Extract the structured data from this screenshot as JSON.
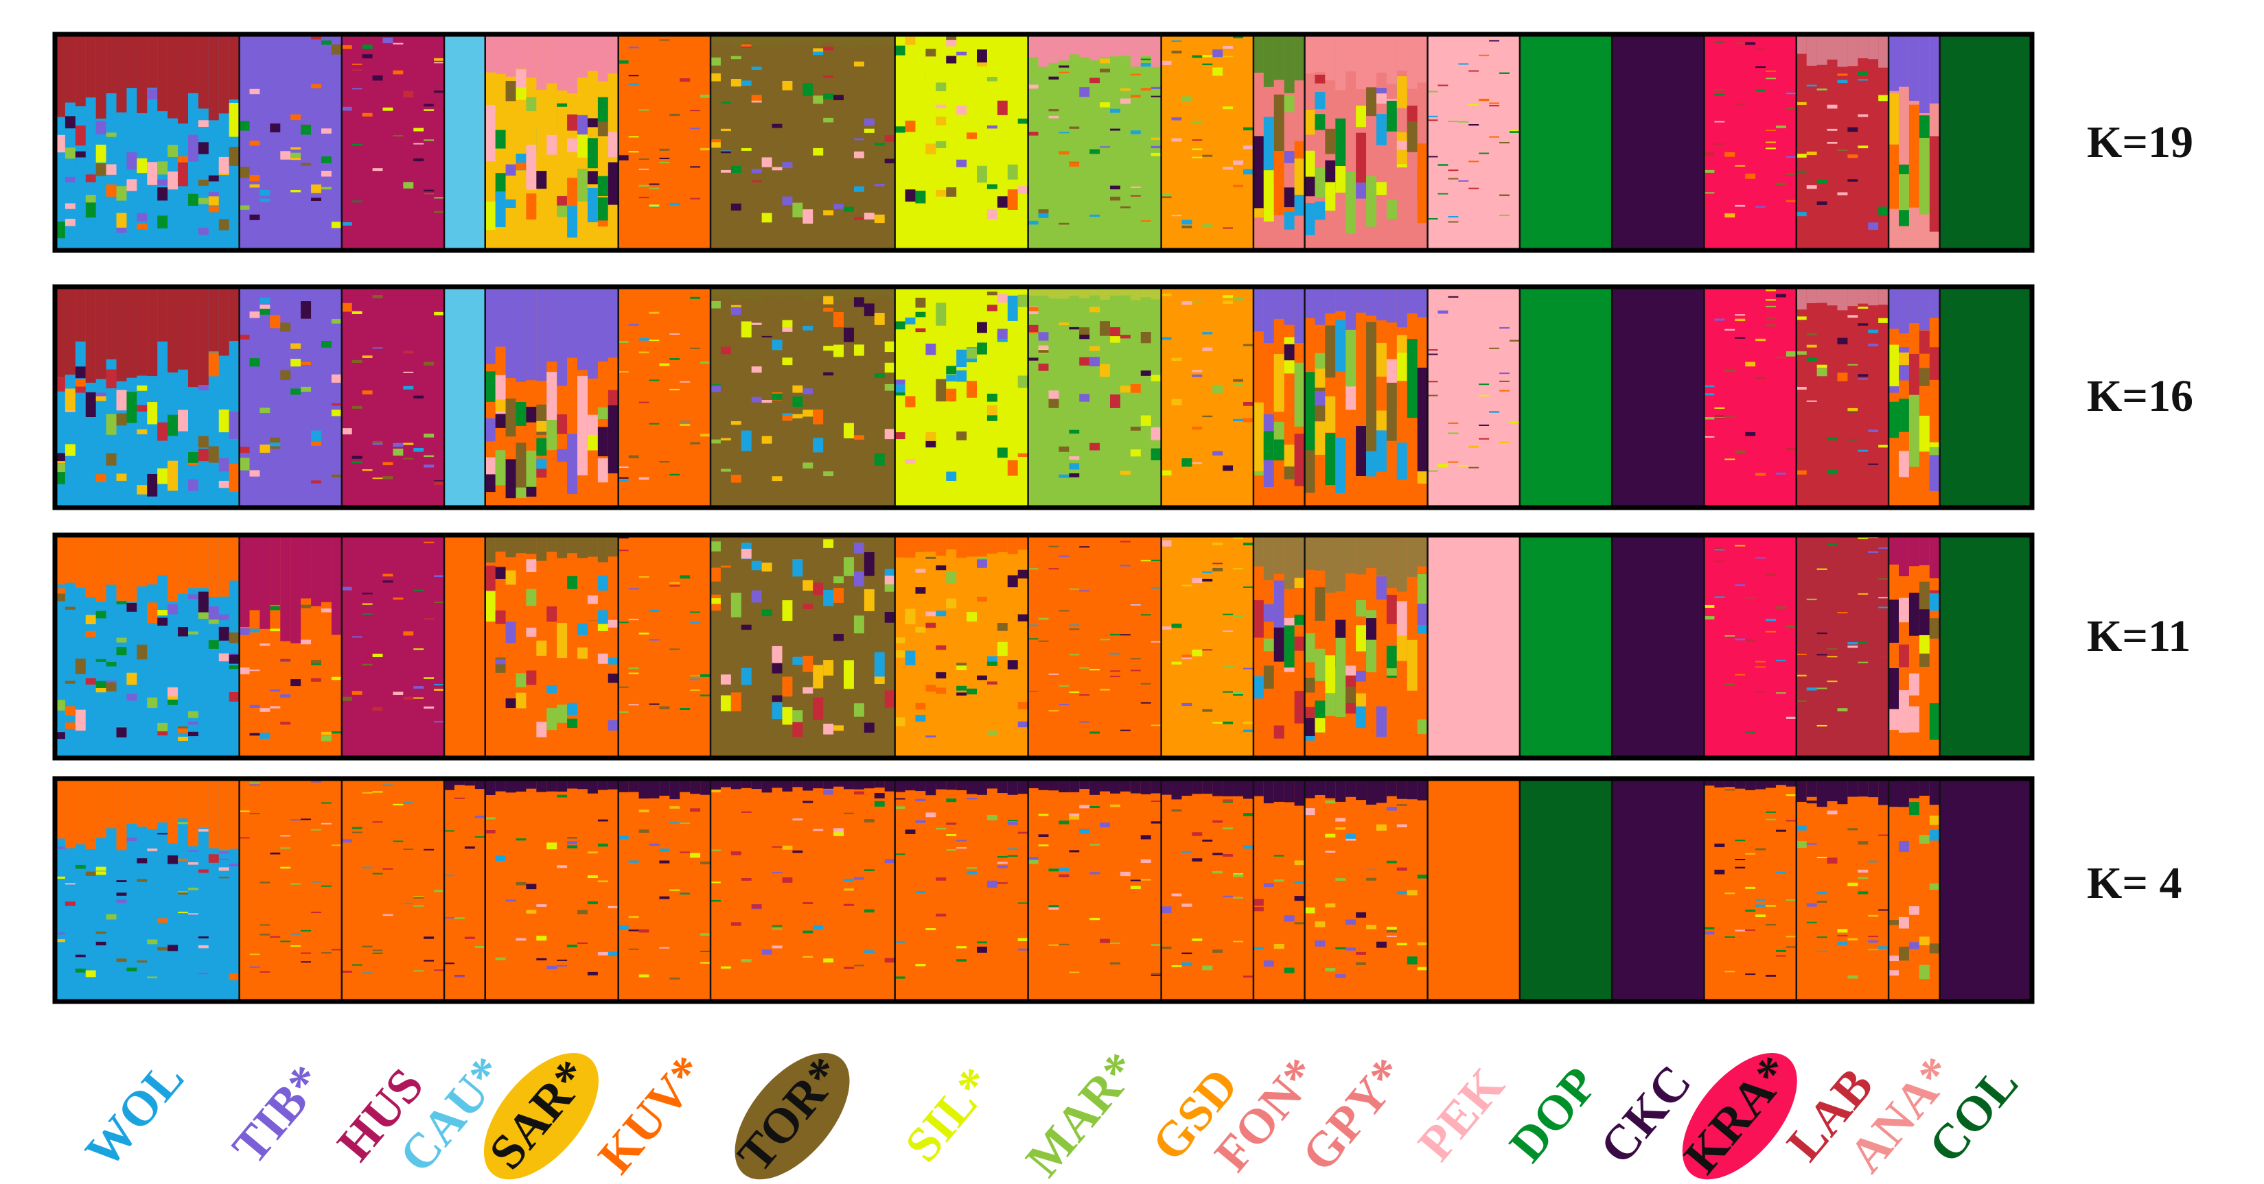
{
  "chart_data": {
    "type": "stacked-bar",
    "title": "",
    "xlabel": "",
    "ylabel": "",
    "ylim": [
      0,
      1
    ],
    "panels_order": [
      "K=19",
      "K=16",
      "K=11",
      "K= 4"
    ],
    "populations": [
      {
        "code": "WOL",
        "color": "#1ba3e0",
        "highlight": null,
        "n": 18
      },
      {
        "code": "TIB*",
        "color": "#7a5fd6",
        "highlight": null,
        "n": 10
      },
      {
        "code": "HUS",
        "color": "#b0165a",
        "highlight": null,
        "n": 10
      },
      {
        "code": "CAU*",
        "color": "#5cc6e8",
        "highlight": null,
        "n": 4
      },
      {
        "code": "SAR*",
        "color": "#111111",
        "highlight": "#f7bf0a",
        "n": 13
      },
      {
        "code": "KUV*",
        "color": "#ff6a00",
        "highlight": null,
        "n": 9
      },
      {
        "code": "TOR*",
        "color": "#111111",
        "highlight": "#806424",
        "n": 18
      },
      {
        "code": "SIL*",
        "color": "#e0f400",
        "highlight": null,
        "n": 13
      },
      {
        "code": "MAR*",
        "color": "#8cc63f",
        "highlight": null,
        "n": 13
      },
      {
        "code": "GSD",
        "color": "#ff9800",
        "highlight": null,
        "n": 9
      },
      {
        "code": "FON*",
        "color": "#f07d7d",
        "highlight": null,
        "n": 5
      },
      {
        "code": "GPY*",
        "color": "#f07d7d",
        "highlight": null,
        "n": 12
      },
      {
        "code": "PEK",
        "color": "#ffb0b8",
        "highlight": null,
        "n": 9
      },
      {
        "code": "DOP",
        "color": "#00902a",
        "highlight": null,
        "n": 9
      },
      {
        "code": "CKC",
        "color": "#3a0a44",
        "highlight": null,
        "n": 9
      },
      {
        "code": "KRA*",
        "color": "#111111",
        "highlight": "#fa1256",
        "n": 9
      },
      {
        "code": "LAB",
        "color": "#c42a38",
        "highlight": null,
        "n": 9
      },
      {
        "code": "ANA*",
        "color": "#f39090",
        "highlight": null,
        "n": 5
      },
      {
        "code": "COL",
        "color": "#04621f",
        "highlight": null,
        "n": 9
      }
    ],
    "panels": [
      {
        "k_label": "K=19",
        "base": [
          "#1ba3e0",
          "#7a5fd6",
          "#b0165a",
          "#5cc6e8",
          "#f7bf0a",
          "#ff6a00",
          "#806424",
          "#e0f400",
          "#8cc63f",
          "#ff9800",
          "#f07d7d",
          "#f07d7d",
          "#ffb0b8",
          "#00902a",
          "#3a0a44",
          "#fa1256",
          "#c42a38",
          "#f39090",
          "#04621f"
        ],
        "top": [
          "#a8262e",
          null,
          null,
          null,
          "#f48aa0",
          null,
          "#7c6a22",
          null,
          "#f28ca0",
          null,
          "#5a8a2a",
          "#f58c90",
          null,
          null,
          null,
          null,
          "#d77a88",
          "#7c5fd8",
          null
        ],
        "top_frac": [
          0.35,
          0,
          0,
          0,
          0.22,
          0,
          0.05,
          0,
          0.12,
          0,
          0.25,
          0.2,
          0,
          0,
          0,
          0,
          0.12,
          0.3,
          0
        ],
        "mix": [
          0.2,
          0.1,
          0.04,
          0,
          0.4,
          0.03,
          0.1,
          0.15,
          0.06,
          0.05,
          0.55,
          0.5,
          0.02,
          0,
          0,
          0.03,
          0.05,
          0.6,
          0
        ]
      },
      {
        "k_label": "K=16",
        "base": [
          "#1ba3e0",
          "#7a5fd6",
          "#b0165a",
          "#5cc6e8",
          "#ff6a00",
          "#ff6a00",
          "#806424",
          "#e0f400",
          "#8cc63f",
          "#ff9800",
          "#ff6a00",
          "#ff6a00",
          "#ffb0b8",
          "#00902a",
          "#3a0a44",
          "#fa1256",
          "#c42a38",
          "#ff6a00",
          "#04621f"
        ],
        "top": [
          "#a8262e",
          null,
          null,
          null,
          "#7a5fd6",
          null,
          "#7c6a22",
          null,
          "#b4c838",
          null,
          "#7a5fd6",
          "#7a5fd6",
          null,
          null,
          null,
          null,
          "#d77a88",
          "#7a5fd6",
          null
        ],
        "top_frac": [
          0.35,
          0,
          0,
          0,
          0.35,
          0,
          0.05,
          0,
          0.05,
          0,
          0.2,
          0.15,
          0,
          0,
          0,
          0,
          0.1,
          0.2,
          0
        ],
        "mix": [
          0.2,
          0.12,
          0.05,
          0,
          0.45,
          0.03,
          0.12,
          0.15,
          0.12,
          0.05,
          0.65,
          0.6,
          0.02,
          0,
          0,
          0.03,
          0.05,
          0.6,
          0
        ]
      },
      {
        "k_label": "K=11",
        "base": [
          "#1ba3e0",
          "#ff6a00",
          "#b0165a",
          "#ff6a00",
          "#ff6a00",
          "#ff6a00",
          "#806424",
          "#ff9800",
          "#ff6a00",
          "#ff9800",
          "#ff6a00",
          "#ff6a00",
          "#ffb0b8",
          "#00902a",
          "#3a0a44",
          "#fa1256",
          "#b42a3a",
          "#ff6a00",
          "#04621f"
        ],
        "top": [
          "#ff6a00",
          "#b0165a",
          null,
          null,
          "#806424",
          null,
          null,
          "#ff6a00",
          null,
          null,
          "#9a7a3a",
          "#9a7a3a",
          null,
          null,
          null,
          null,
          null,
          "#b0165a",
          null
        ],
        "top_frac": [
          0.25,
          0.4,
          0,
          0,
          0.1,
          0,
          0,
          0.08,
          0,
          0,
          0.2,
          0.2,
          0,
          0,
          0,
          0,
          0,
          0.15,
          0
        ],
        "mix": [
          0.15,
          0.05,
          0.03,
          0,
          0.2,
          0.02,
          0.25,
          0.1,
          0.02,
          0.04,
          0.4,
          0.45,
          0,
          0,
          0,
          0.02,
          0.02,
          0.5,
          0
        ]
      },
      {
        "k_label": "K= 4",
        "base": [
          "#1ba3e0",
          "#ff6a00",
          "#ff6a00",
          "#ff6a00",
          "#ff6a00",
          "#ff6a00",
          "#ff6a00",
          "#ff6a00",
          "#ff6a00",
          "#ff6a00",
          "#ff6a00",
          "#ff6a00",
          "#ff6a00",
          "#04621f",
          "#3a0a44",
          "#ff6a00",
          "#ff6a00",
          "#ff6a00",
          "#3a0a44"
        ],
        "top": [
          "#ff6a00",
          null,
          null,
          "#3a0a44",
          "#3a0a44",
          "#3a0a44",
          "#3a0a44",
          "#3a0a44",
          "#3a0a44",
          "#3a0a44",
          "#3a0a44",
          "#3a0a44",
          null,
          null,
          null,
          "#3a0a44",
          "#3a0a44",
          "#3a0a44",
          null
        ],
        "top_frac": [
          0.25,
          0,
          0,
          0.04,
          0.06,
          0.08,
          0.05,
          0.06,
          0.06,
          0.08,
          0.1,
          0.1,
          0,
          0,
          0,
          0.04,
          0.1,
          0.1,
          0
        ],
        "mix": [
          0.05,
          0.02,
          0.02,
          0.02,
          0.04,
          0.04,
          0.04,
          0.04,
          0.04,
          0.04,
          0.06,
          0.06,
          0,
          0,
          0,
          0.03,
          0.04,
          0.15,
          0
        ]
      }
    ]
  }
}
